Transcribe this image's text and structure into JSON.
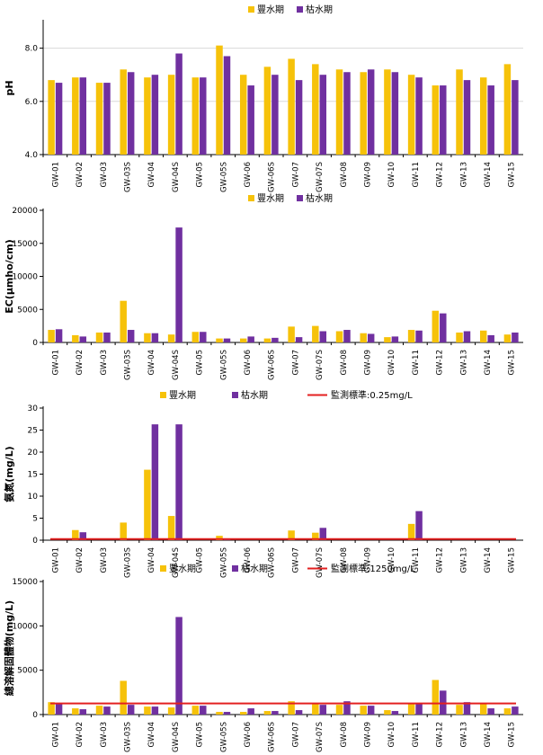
{
  "colors": {
    "wet": "#f6c20a",
    "dry": "#7030a0",
    "std": "#e32020"
  },
  "categories_a": [
    "GW-01",
    "GW-02",
    "GW-03",
    "GW-03S",
    "GW-04",
    "GW-04S",
    "GW-05",
    "GW-05S",
    "GW-06",
    "GW-06S",
    "GW-07",
    "GW-07S",
    "GW-08",
    "GW-09",
    "GW-10",
    "GW-11",
    "GW-12",
    "GW-13",
    "GW-14",
    "GW-15"
  ],
  "chart_data": [
    {
      "type": "bar",
      "title": "",
      "ylabel": "pH",
      "ylim": [
        4.0,
        9.0
      ],
      "yticks": [
        4.0,
        6.0,
        8.0
      ],
      "ytick_labels": [
        "4.0",
        "6.0",
        "8.0"
      ],
      "categories": [
        "GW-01",
        "GW-02",
        "GW-03",
        "GW-03S",
        "GW-04",
        "GW-04S",
        "GW-05",
        "GW-05S",
        "GW-06",
        "GW-06S",
        "GW-07",
        "GW-07S",
        "GW-08",
        "GW-09",
        "GW-10",
        "GW-11",
        "GW-12",
        "GW-13",
        "GW-14",
        "GW-15"
      ],
      "series": [
        {
          "name": "豐水期",
          "values": [
            6.8,
            6.9,
            6.7,
            7.2,
            6.9,
            7.0,
            6.9,
            8.1,
            7.0,
            7.3,
            7.6,
            7.4,
            7.2,
            7.1,
            7.2,
            7.0,
            6.6,
            7.2,
            6.9,
            7.4
          ]
        },
        {
          "name": "枯水期",
          "values": [
            6.7,
            6.9,
            6.7,
            7.1,
            7.0,
            7.8,
            6.9,
            7.7,
            6.6,
            7.0,
            6.8,
            7.0,
            7.1,
            7.2,
            7.1,
            6.9,
            6.6,
            6.8,
            6.6,
            6.8
          ]
        }
      ],
      "legend": [
        "豐水期",
        "枯水期"
      ]
    },
    {
      "type": "bar",
      "title": "",
      "ylabel": "EC(μmho/cm)",
      "ylim": [
        0,
        20000
      ],
      "yticks": [
        0,
        5000,
        10000,
        15000,
        20000
      ],
      "ytick_labels": [
        "0",
        "5000",
        "10000",
        "15000",
        "20000"
      ],
      "categories": [
        "GW-01",
        "GW-02",
        "GW-03",
        "GW-03S",
        "GW-04",
        "GW-04S",
        "GW-05",
        "GW-05S",
        "GW-06",
        "GW-06S",
        "GW-07",
        "GW-07S",
        "GW-08",
        "GW-09",
        "GW-10",
        "GW-11",
        "GW-12",
        "GW-13",
        "GW-14",
        "GW-15"
      ],
      "series": [
        {
          "name": "豐水期",
          "values": [
            1900,
            1100,
            1500,
            6300,
            1400,
            1200,
            1600,
            600,
            600,
            600,
            2400,
            2500,
            1700,
            1400,
            800,
            1900,
            4800,
            1500,
            1800,
            1200
          ]
        },
        {
          "name": "枯水期",
          "values": [
            2000,
            900,
            1500,
            1900,
            1400,
            17400,
            1600,
            600,
            900,
            700,
            800,
            1700,
            1900,
            1300,
            900,
            1800,
            4400,
            1700,
            1100,
            1500
          ]
        }
      ],
      "legend": [
        "豐水期",
        "枯水期"
      ]
    },
    {
      "type": "bar",
      "title": "",
      "ylabel": "氨氮(mg/L)",
      "ylim": [
        0,
        30
      ],
      "yticks": [
        0,
        5,
        10,
        15,
        20,
        25,
        30
      ],
      "ytick_labels": [
        "0",
        "5",
        "10",
        "15",
        "20",
        "25",
        "30"
      ],
      "categories": [
        "GW-01",
        "GW-02",
        "GW-03",
        "GW-03S",
        "GW-04",
        "GW-04S",
        "GW-05",
        "GW-05S",
        "GW-06",
        "GW-06S",
        "GW-07",
        "GW-07S",
        "GW-08",
        "GW-09",
        "GW-10",
        "GW-11",
        "GW-12",
        "GW-13",
        "GW-14",
        "GW-15"
      ],
      "series": [
        {
          "name": "豐水期",
          "values": [
            0,
            2.3,
            0,
            4.0,
            16.0,
            5.5,
            0,
            1.0,
            0,
            0,
            2.2,
            1.7,
            0,
            0,
            0,
            3.7,
            0,
            0,
            0,
            0
          ]
        },
        {
          "name": "枯水期",
          "values": [
            0,
            1.8,
            0,
            0,
            26.3,
            26.3,
            0,
            0.4,
            0,
            0,
            0,
            2.8,
            0,
            0,
            0,
            6.6,
            0,
            0,
            0,
            0
          ]
        }
      ],
      "standard": {
        "name": "監測標準:0.25mg/L",
        "value": 0.25
      },
      "legend": [
        "豐水期",
        "枯水期",
        "監測標準:0.25mg/L"
      ]
    },
    {
      "type": "bar",
      "title": "",
      "ylabel": "總溶解固體物(mg/L)",
      "ylim": [
        0,
        15000
      ],
      "yticks": [
        0,
        5000,
        10000,
        15000
      ],
      "ytick_labels": [
        "0",
        "5000",
        "10000",
        "15000"
      ],
      "categories": [
        "GW-01",
        "GW-02",
        "GW-03",
        "GW-03S",
        "GW-04",
        "GW-04S",
        "GW-05",
        "GW-05S",
        "GW-06",
        "GW-06S",
        "GW-07",
        "GW-07S",
        "GW-08",
        "GW-09",
        "GW-10",
        "GW-11",
        "GW-12",
        "GW-13",
        "GW-14",
        "GW-15"
      ],
      "series": [
        {
          "name": "豐水期",
          "values": [
            1400,
            700,
            1000,
            3800,
            900,
            800,
            1000,
            300,
            300,
            400,
            1500,
            1200,
            1100,
            1000,
            500,
            1200,
            3900,
            1100,
            1200,
            700
          ]
        },
        {
          "name": "枯水期",
          "values": [
            1300,
            600,
            900,
            1100,
            900,
            11000,
            1000,
            300,
            700,
            400,
            500,
            1100,
            1500,
            1000,
            400,
            1200,
            2700,
            1400,
            700,
            900
          ]
        }
      ],
      "standard": {
        "name": "監測標準:1250mg/L",
        "value": 1250
      },
      "legend": [
        "豐水期",
        "枯水期",
        "監測標準:1250mg/L"
      ]
    }
  ]
}
